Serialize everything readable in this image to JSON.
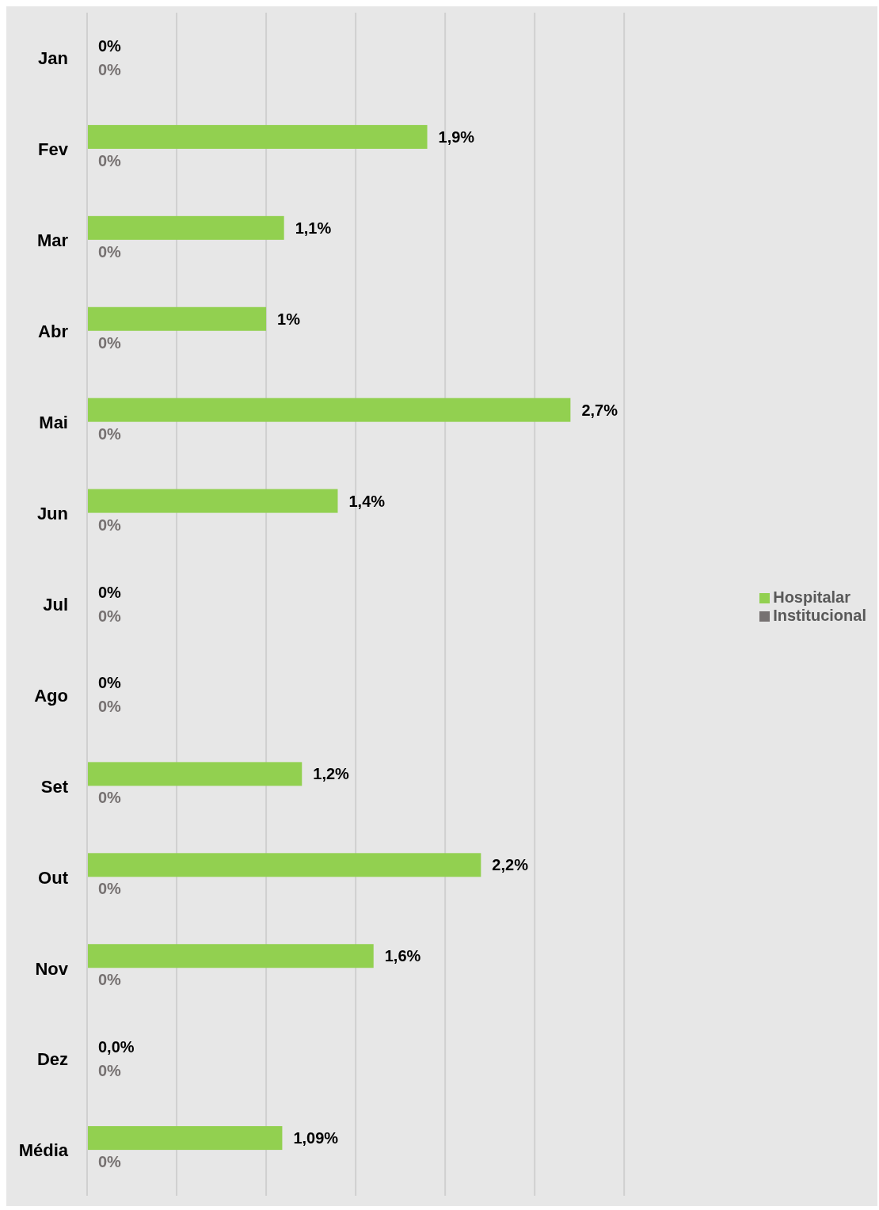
{
  "chart_data": {
    "type": "bar",
    "orientation": "horizontal",
    "categories": [
      "Jan",
      "Fev",
      "Mar",
      "Abr",
      "Mai",
      "Jun",
      "Jul",
      "Ago",
      "Set",
      "Out",
      "Nov",
      "Dez",
      "Média"
    ],
    "series": [
      {
        "name": "Hospitalar",
        "color": "#92d050",
        "values": [
          0,
          1.9,
          1.1,
          1,
          2.7,
          1.4,
          0,
          0,
          1.2,
          2.2,
          1.6,
          0,
          1.09
        ],
        "value_labels": [
          "0%",
          "1,9%",
          "1,1%",
          "1%",
          "2,7%",
          "1,4%",
          "0%",
          "0%",
          "1,2%",
          "2,2%",
          "1,6%",
          "0,0%",
          "1,09%"
        ]
      },
      {
        "name": "Institucional",
        "color": "#767171",
        "values": [
          0,
          0,
          0,
          0,
          0,
          0,
          0,
          0,
          0,
          0,
          0,
          0,
          0
        ],
        "value_labels": [
          "0%",
          "0%",
          "0%",
          "0%",
          "0%",
          "0%",
          "0%",
          "0%",
          "0%",
          "0%",
          "0%",
          "0%",
          "0%"
        ]
      }
    ],
    "grid": "x",
    "legend": "right",
    "tick_labels": "y"
  }
}
